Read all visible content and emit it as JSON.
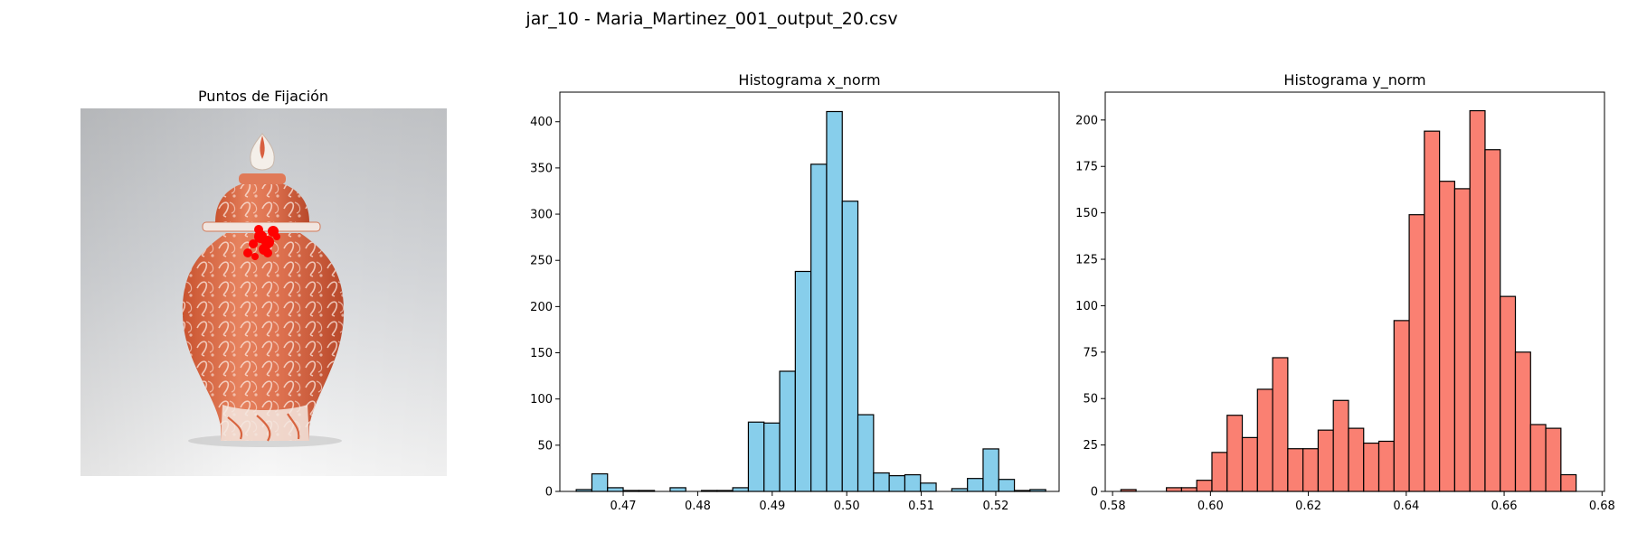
{
  "figure": {
    "suptitle": "jar_10 - Maria_Martinez_001_output_20.csv"
  },
  "image_panel": {
    "title": "Puntos de Fijación",
    "image_subject": "red-and-white porcelain ginger jar with lid",
    "colors": {
      "jar": "#d9603a",
      "fixation": "#ff0000",
      "background": "#d6d8dc"
    }
  },
  "chart_data": [
    {
      "type": "bar",
      "title": "Histograma x_norm",
      "xlabel": "",
      "ylabel": "",
      "xlim": [
        0.4615,
        0.5285
      ],
      "ylim": [
        0,
        432
      ],
      "xticks": [
        0.47,
        0.48,
        0.49,
        0.5,
        0.51,
        0.52
      ],
      "xtick_labels": [
        "0.47",
        "0.48",
        "0.49",
        "0.50",
        "0.51",
        "0.52"
      ],
      "yticks": [
        0,
        50,
        100,
        150,
        200,
        250,
        300,
        350,
        400
      ],
      "bin_start": 0.4637,
      "bin_width": 0.0021,
      "counts": [
        2,
        19,
        4,
        1,
        1,
        0,
        4,
        0,
        1,
        1,
        4,
        75,
        74,
        130,
        238,
        354,
        411,
        314,
        83,
        20,
        17,
        18,
        9,
        0,
        3,
        14,
        46,
        13,
        1,
        2
      ],
      "color": "#87ceeb",
      "edgecolor": "#000000",
      "grid": false
    },
    {
      "type": "bar",
      "title": "Histograma y_norm",
      "xlabel": "",
      "ylabel": "",
      "xlim": [
        0.5785,
        0.6805
      ],
      "ylim": [
        0,
        215
      ],
      "xticks": [
        0.58,
        0.6,
        0.62,
        0.64,
        0.66,
        0.68
      ],
      "xtick_labels": [
        "0.58",
        "0.60",
        "0.62",
        "0.64",
        "0.66",
        "0.68"
      ],
      "yticks": [
        0,
        25,
        50,
        75,
        100,
        125,
        150,
        175,
        200
      ],
      "bin_start": 0.5817,
      "bin_width": 0.0031,
      "counts": [
        1,
        0,
        0,
        2,
        2,
        6,
        21,
        41,
        29,
        55,
        72,
        23,
        23,
        33,
        49,
        34,
        26,
        27,
        92,
        149,
        194,
        167,
        163,
        205,
        184,
        105,
        75,
        36,
        34,
        9
      ],
      "color": "#fa8072",
      "edgecolor": "#000000",
      "grid": false
    }
  ]
}
